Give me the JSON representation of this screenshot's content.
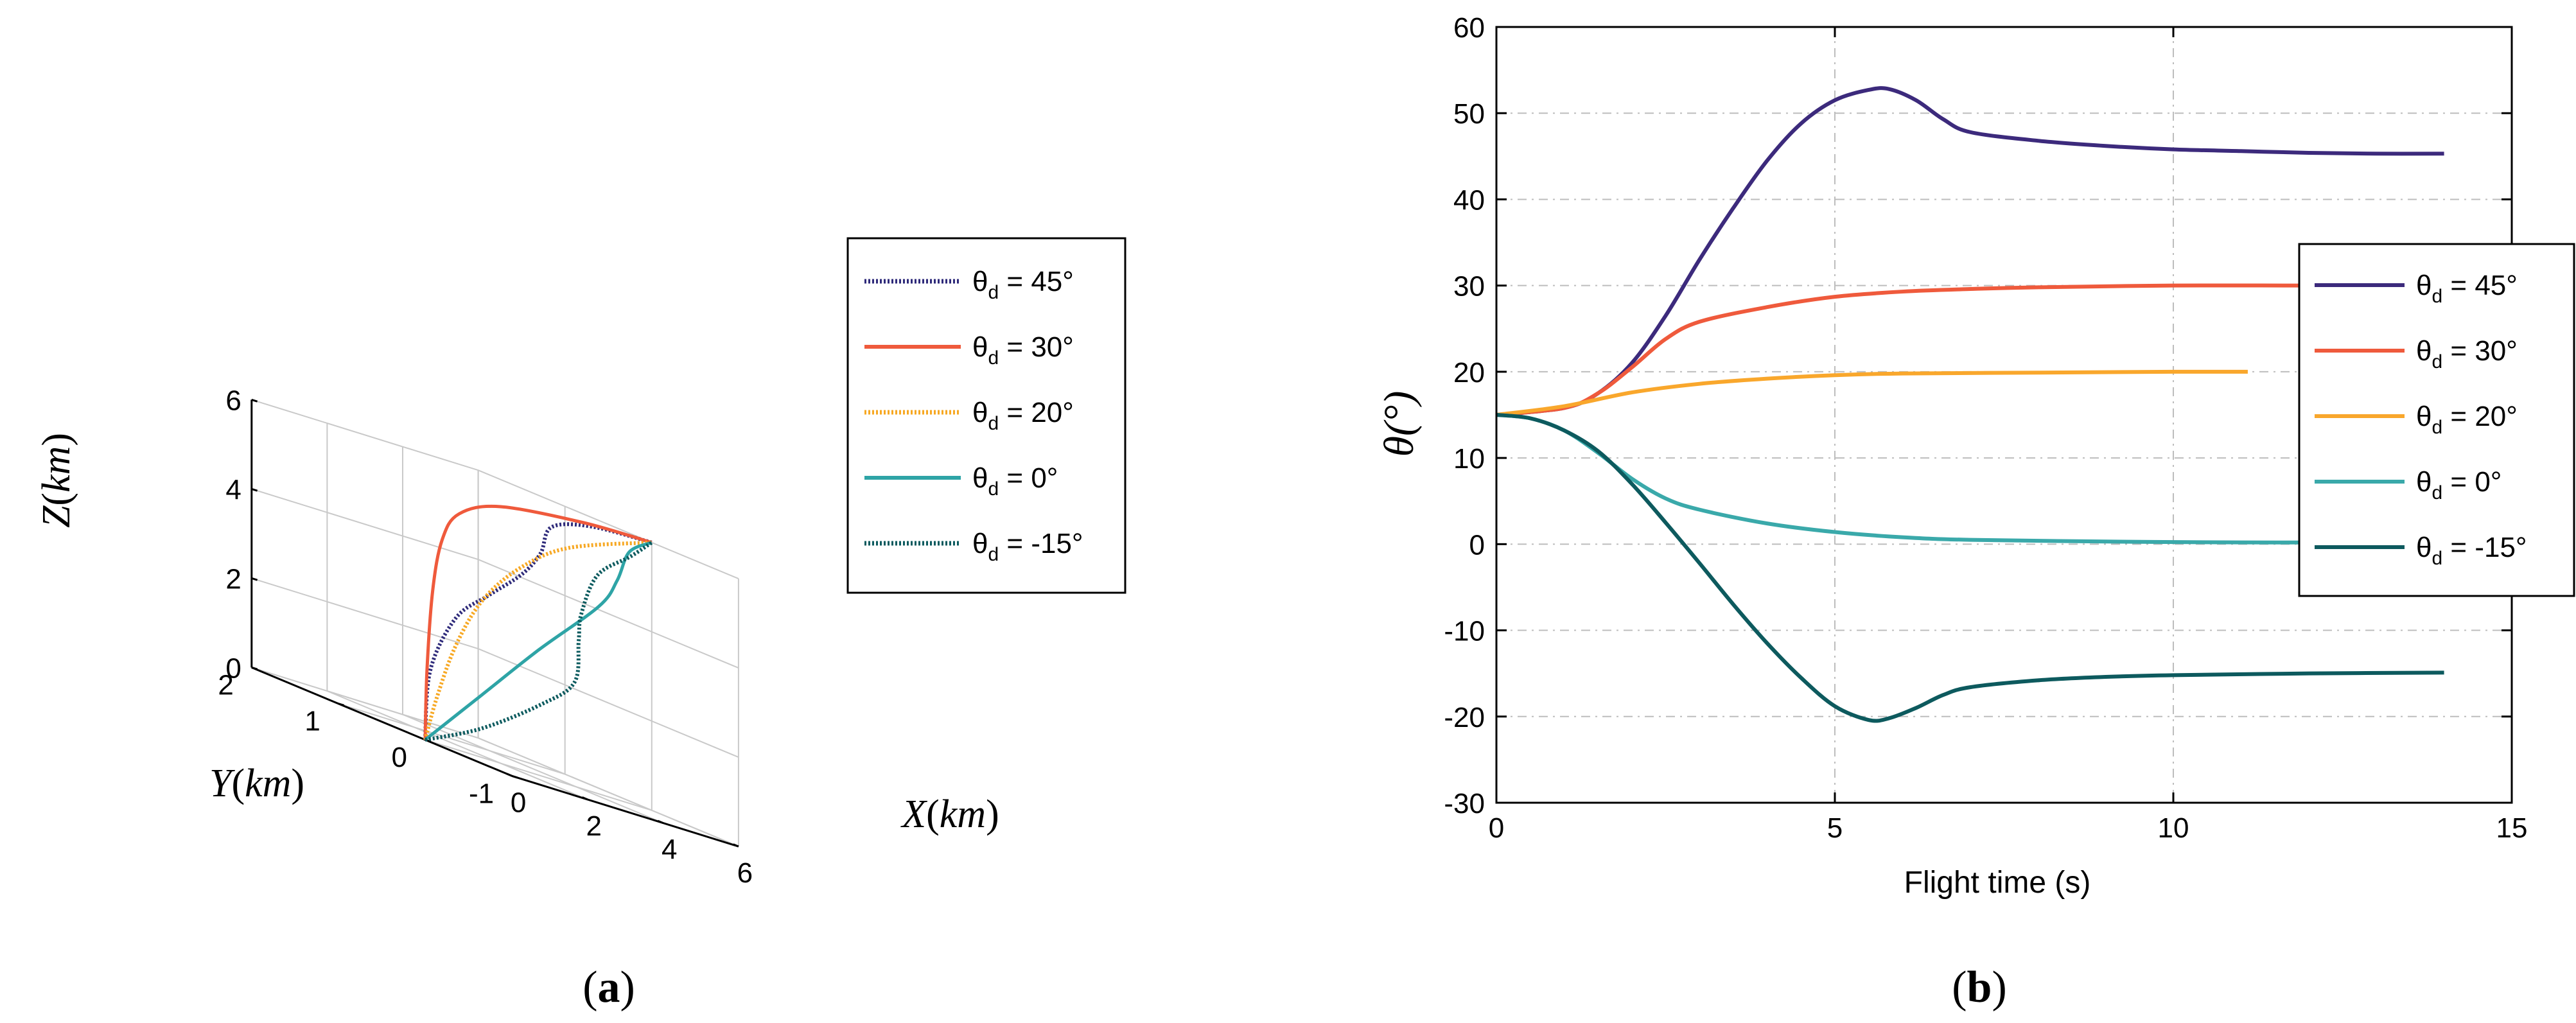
{
  "chart_data": [
    {
      "type": "line",
      "projection": "3d",
      "panel_label": "a",
      "xlabel": "X",
      "ylabel": "Y",
      "zlabel": "Z",
      "unit": "km",
      "xlim": [
        0,
        6
      ],
      "ylim": [
        -1,
        2
      ],
      "zlim": [
        0,
        6
      ],
      "x_ticks": [
        "0",
        "2",
        "4",
        "6"
      ],
      "y_ticks": [
        "-1",
        "0",
        "1",
        "2"
      ],
      "z_ticks": [
        "0",
        "2",
        "4",
        "6"
      ],
      "grid": true,
      "legend_position": "right",
      "legend_prefix": "θ",
      "legend_subscript": "d",
      "series": [
        {
          "name": "θd = 45°",
          "value_label": " = 45°",
          "color": "#2e2a7a",
          "style": "dotted",
          "points": [
            [
              0,
              0,
              0
            ],
            [
              0.02,
              -0.05,
              1.6
            ],
            [
              0.12,
              -0.3,
              3.0
            ],
            [
              0.3,
              -0.6,
              3.8
            ],
            [
              0.6,
              -0.85,
              4.55
            ],
            [
              1.1,
              -0.85,
              5.15
            ],
            [
              2.2,
              -0.5,
              5.75
            ],
            [
              4.3,
              -0.05,
              5.95
            ],
            [
              6,
              0,
              6
            ]
          ]
        },
        {
          "name": "θd = 30°",
          "value_label": " = 30°",
          "color": "#ef5a3c",
          "style": "solid",
          "points": [
            [
              0,
              0,
              0
            ],
            [
              0.05,
              0,
              1.6
            ],
            [
              0.2,
              0,
              3.4
            ],
            [
              0.45,
              0,
              4.6
            ],
            [
              0.9,
              0,
              5.3
            ],
            [
              2.0,
              0,
              5.75
            ],
            [
              4.2,
              0,
              5.97
            ],
            [
              6,
              0,
              6
            ]
          ]
        },
        {
          "name": "θd = 20°",
          "value_label": " = 20°",
          "color": "#f7a823",
          "style": "dotted",
          "points": [
            [
              0,
              0,
              0
            ],
            [
              0.3,
              0,
              1.0
            ],
            [
              0.8,
              0,
              2.3
            ],
            [
              1.5,
              0,
              3.5
            ],
            [
              2.5,
              0,
              4.5
            ],
            [
              3.8,
              0,
              5.3
            ],
            [
              6,
              0,
              6
            ]
          ]
        },
        {
          "name": "θd = 0°",
          "value_label": " = 0°",
          "color": "#2ea4a6",
          "style": "solid",
          "points": [
            [
              0,
              0,
              0
            ],
            [
              1.5,
              0,
              1.4
            ],
            [
              3.0,
              0,
              2.8
            ],
            [
              4.6,
              0,
              4.2
            ],
            [
              5.2,
              0.05,
              4.9
            ],
            [
              5.75,
              0.15,
              5.6
            ],
            [
              6,
              0,
              6
            ]
          ]
        },
        {
          "name": "θd = -15°",
          "value_label": " = -15°",
          "color": "#0b5a5e",
          "style": "dotted",
          "points": [
            [
              0,
              0,
              0
            ],
            [
              1.5,
              0,
              0.65
            ],
            [
              3.2,
              0.05,
              1.6
            ],
            [
              4.3,
              0.15,
              2.3
            ],
            [
              5.1,
              0.45,
              3.2
            ],
            [
              5.4,
              0.55,
              3.8
            ],
            [
              5.6,
              0.45,
              4.8
            ],
            [
              5.9,
              0.2,
              5.5
            ],
            [
              6,
              0,
              6
            ]
          ]
        }
      ]
    },
    {
      "type": "line",
      "panel_label": "b",
      "title": "",
      "xlabel": "Flight time (s)",
      "ylabel": "θ(°)",
      "xlim": [
        0,
        15
      ],
      "ylim": [
        -30,
        60
      ],
      "x_ticks": [
        "0",
        "5",
        "10",
        "15"
      ],
      "y_ticks": [
        "-30",
        "-20",
        "-10",
        "0",
        "10",
        "20",
        "30",
        "40",
        "50",
        "60"
      ],
      "grid": true,
      "legend_position": "right",
      "legend_prefix": "θ",
      "legend_subscript": "d",
      "series": [
        {
          "name": "θd = 45°",
          "value_label": " = 45°",
          "color": "#3c2a7c",
          "x": [
            0,
            1,
            1.5,
            2,
            2.5,
            3,
            3.5,
            4,
            4.5,
            5,
            5.5,
            5.8,
            6.2,
            6.6,
            7,
            8,
            9,
            10,
            11,
            12,
            13,
            14
          ],
          "y": [
            15,
            15.8,
            17.5,
            21,
            26.5,
            33,
            39,
            44.5,
            48.8,
            51.5,
            52.7,
            52.8,
            51.5,
            49.3,
            47.8,
            46.8,
            46.2,
            45.8,
            45.6,
            45.4,
            45.3,
            45.3
          ]
        },
        {
          "name": "θd = 30°",
          "value_label": " = 30°",
          "color": "#ef5a3c",
          "x": [
            0,
            1,
            1.5,
            2,
            2.5,
            3,
            4,
            5,
            6,
            7,
            8,
            10,
            12,
            14
          ],
          "y": [
            15,
            15.8,
            17.5,
            20.5,
            23.8,
            25.8,
            27.5,
            28.7,
            29.3,
            29.6,
            29.8,
            30,
            30,
            30
          ]
        },
        {
          "name": "θd = 20°",
          "value_label": " = 20°",
          "color": "#f9a72c",
          "x": [
            0,
            1,
            2,
            3,
            4,
            5,
            6,
            8,
            10,
            11.1
          ],
          "y": [
            15,
            16,
            17.6,
            18.6,
            19.2,
            19.6,
            19.8,
            19.9,
            20,
            20
          ]
        },
        {
          "name": "θd = 0°",
          "value_label": " = 0°",
          "color": "#3aa9aa",
          "x": [
            0,
            0.5,
            1,
            1.5,
            2,
            2.5,
            3,
            4,
            5,
            6,
            7,
            9,
            11,
            12.7
          ],
          "y": [
            15,
            14.6,
            13.2,
            10.6,
            7.6,
            5.3,
            4,
            2.4,
            1.4,
            0.8,
            0.5,
            0.3,
            0.2,
            0.2
          ]
        },
        {
          "name": "θd = -15°",
          "value_label": " = -15°",
          "color": "#0d5a5e",
          "x": [
            0,
            0.5,
            1,
            1.5,
            2,
            2.5,
            3,
            3.5,
            4,
            4.5,
            5,
            5.5,
            5.8,
            6.2,
            6.6,
            7,
            8,
            9,
            10,
            12,
            14
          ],
          "y": [
            15,
            14.6,
            13.2,
            10.8,
            7,
            2.5,
            -2.2,
            -7,
            -11.5,
            -15.5,
            -18.8,
            -20.4,
            -20.2,
            -19,
            -17.5,
            -16.6,
            -15.8,
            -15.4,
            -15.2,
            -15,
            -14.9
          ]
        }
      ]
    }
  ]
}
